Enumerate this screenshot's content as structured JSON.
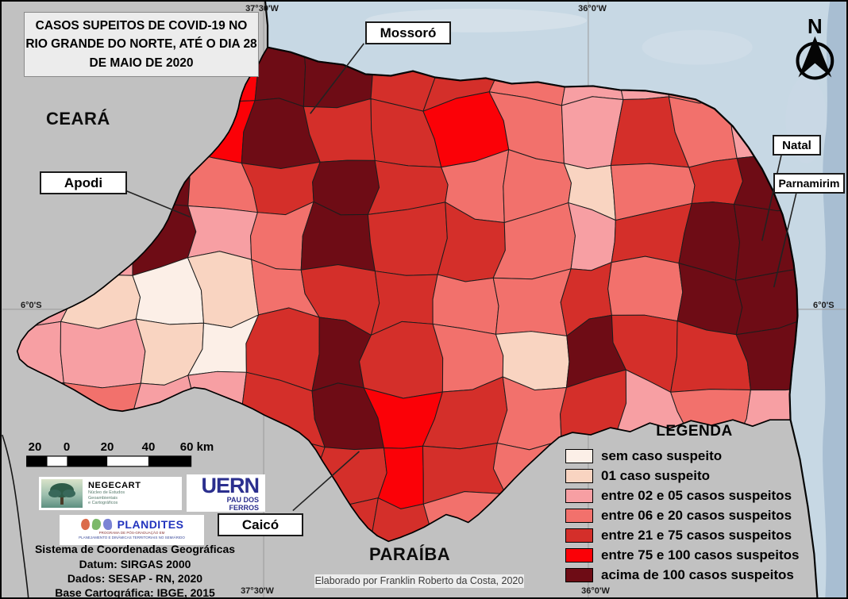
{
  "title": "CASOS SUPEITOS DE COVID-19 NO\nRIO GRANDE DO NORTE, ATÉ O DIA 28\nDE MAIO DE 2020",
  "region_labels": {
    "ceara": "CEARÁ",
    "paraiba": "PARAÍBA"
  },
  "callouts": [
    {
      "id": "mossoro",
      "label": "Mossoró"
    },
    {
      "id": "apodi",
      "label": "Apodi"
    },
    {
      "id": "natal",
      "label": "Natal"
    },
    {
      "id": "parnamirim",
      "label": "Parnamirim"
    },
    {
      "id": "caico",
      "label": "Caicó"
    }
  ],
  "graticule": {
    "top_left": "37°30'W",
    "top_right": "36°0'W",
    "bottom_left": "37°30'W",
    "bottom_right": "36°0'W",
    "left": "6°0'S",
    "right": "6°0'S"
  },
  "north_arrow": {
    "label": "N"
  },
  "legend": {
    "title": "LEGENDA",
    "items": [
      {
        "label": "sem caso suspeito",
        "color": "#FCEFE7"
      },
      {
        "label": "01 caso suspeito",
        "color": "#F9D4C1"
      },
      {
        "label": "entre 02 e 05 casos suspeitos",
        "color": "#F79FA3"
      },
      {
        "label": "entre 06 e 20 casos suspeitos",
        "color": "#F2716C"
      },
      {
        "label": "entre 21 e 75 casos suspeitos",
        "color": "#D42F2A"
      },
      {
        "label": "entre 75 e 100 casos suspeitos",
        "color": "#FB0107"
      },
      {
        "label": "acima de 100 casos suspeitos",
        "color": "#6E0C15"
      }
    ]
  },
  "scale_bar": {
    "labels": [
      "20",
      "0",
      "20",
      "40",
      "60 km"
    ]
  },
  "logos": {
    "negecart": {
      "name": "NEGECART",
      "sub": "Núcleo de Estudos\nGeoambientais\ne Cartográficos"
    },
    "uern": {
      "name": "UERN",
      "sub": "PAU DOS\nFERROS"
    },
    "plandites": {
      "name": "PLANDITES",
      "sub1": "PROGRAMA DE PÓS-GRADUAÇÃO EM",
      "sub2": "PLANEJAMENTO E DINÂMICAS TERRITORIAIS NO SEMIÁRIDO"
    }
  },
  "credits": {
    "lines": [
      "Sistema de Coordenadas Geográficas",
      "Datum: SIRGAS 2000",
      "Dados: SESAP - RN, 2020",
      "Base Cartográfica: IBGE, 2015"
    ],
    "elaborated": "Elaborado por Franklin Roberto da Costa, 2020"
  },
  "map": {
    "land_color": "#C1C1C1",
    "ocean_color": "#C7D8E4",
    "ocean_deep_color": "#A8BED2",
    "cell_classes": [
      [
        2,
        3,
        3,
        5,
        6,
        6,
        4,
        4,
        3,
        2,
        2,
        3,
        2
      ],
      [
        2,
        3,
        3,
        5,
        6,
        4,
        4,
        5,
        3,
        2,
        4,
        3,
        2
      ],
      [
        2,
        3,
        6,
        3,
        4,
        6,
        4,
        3,
        3,
        1,
        3,
        4,
        6
      ],
      [
        2,
        2,
        6,
        2,
        3,
        6,
        4,
        4,
        3,
        2,
        4,
        6,
        6
      ],
      [
        2,
        1,
        0,
        1,
        3,
        4,
        4,
        3,
        3,
        4,
        3,
        6,
        6
      ],
      [
        2,
        2,
        1,
        0,
        4,
        6,
        4,
        3,
        1,
        6,
        4,
        4,
        6
      ],
      [
        2,
        3,
        2,
        2,
        4,
        6,
        5,
        4,
        3,
        4,
        2,
        3,
        2
      ],
      [
        2,
        3,
        3,
        3,
        4,
        4,
        5,
        4,
        3,
        3,
        2,
        2,
        2
      ],
      [
        2,
        2,
        3,
        3,
        4,
        4,
        4,
        3,
        3,
        2,
        2,
        2,
        2
      ]
    ]
  }
}
